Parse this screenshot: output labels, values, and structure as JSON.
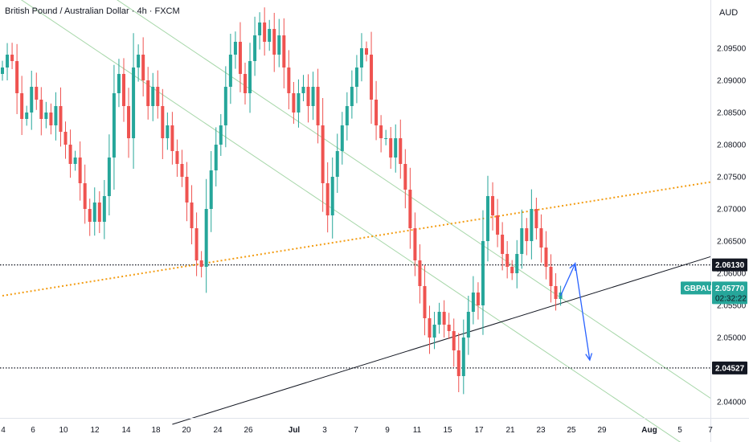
{
  "header": {
    "title": "British Pound / Australian Dollar · 4h · FXCM",
    "currency": "AUD"
  },
  "colors": {
    "up": "#26a69a",
    "down": "#ef5350",
    "channel": "#a5d6a7",
    "orange": "#f39c12",
    "trend": "#131722",
    "arrow": "#2962ff",
    "tag_bg": "#131722",
    "symbol_bg": "#26a69a"
  },
  "chart_data": {
    "type": "candlestick",
    "title": "British Pound / Australian Dollar · 4h · FXCM",
    "symbol": "GBPAUD",
    "ylim": [
      2.0375,
      2.1025
    ],
    "y_ticks": [
      {
        "value": 2.095,
        "label": "2.09500"
      },
      {
        "value": 2.09,
        "label": "2.09000"
      },
      {
        "value": 2.085,
        "label": "2.08500"
      },
      {
        "value": 2.08,
        "label": "2.08000"
      },
      {
        "value": 2.075,
        "label": "2.07500"
      },
      {
        "value": 2.07,
        "label": "2.07000"
      },
      {
        "value": 2.065,
        "label": "2.06500"
      },
      {
        "value": 2.06,
        "label": "2.06000"
      },
      {
        "value": 2.055,
        "label": "2.05500"
      },
      {
        "value": 2.05,
        "label": "2.05000"
      },
      {
        "value": 2.04,
        "label": "2.04000"
      }
    ],
    "x_ticks": [
      "4",
      "6",
      "10",
      "12",
      "14",
      "18",
      "20",
      "24",
      "26",
      "Jul",
      "3",
      "7",
      "9",
      "11",
      "15",
      "17",
      "21",
      "23",
      "25",
      "29",
      "Aug",
      "5",
      "7"
    ],
    "close": [
      2.092,
      2.094,
      2.093,
      2.088,
      2.084,
      2.085,
      2.089,
      2.087,
      2.084,
      2.085,
      2.083,
      2.086,
      2.082,
      2.08,
      2.077,
      2.078,
      2.074,
      2.07,
      2.068,
      2.071,
      2.068,
      2.072,
      2.078,
      2.088,
      2.091,
      2.086,
      2.081,
      2.092,
      2.094,
      2.09,
      2.086,
      2.089,
      2.086,
      2.081,
      2.083,
      2.079,
      2.077,
      2.075,
      2.071,
      2.067,
      2.062,
      2.061,
      2.07,
      2.076,
      2.08,
      2.083,
      2.089,
      2.094,
      2.096,
      2.091,
      2.088,
      2.093,
      2.097,
      2.099,
      2.096,
      2.098,
      2.094,
      2.097,
      2.092,
      2.088,
      2.085,
      2.088,
      2.089,
      2.086,
      2.089,
      2.083,
      2.074,
      2.069,
      2.075,
      2.079,
      2.083,
      2.086,
      2.089,
      2.092,
      2.095,
      2.094,
      2.087,
      2.083,
      2.081,
      2.081,
      2.078,
      2.081,
      2.077,
      2.073,
      2.067,
      2.062,
      2.058,
      2.053,
      2.05,
      2.052,
      2.054,
      2.052,
      2.051,
      2.048,
      2.044,
      2.05,
      2.054,
      2.057,
      2.055,
      2.065,
      2.072,
      2.069,
      2.066,
      2.063,
      2.061,
      2.06,
      2.063,
      2.067,
      2.065,
      2.07,
      2.067,
      2.064,
      2.061,
      2.058,
      2.056,
      2.057
    ],
    "last_price": {
      "value": 2.0577,
      "label": "2.05770",
      "countdown": "02:32:22"
    },
    "levels": [
      {
        "value": 2.0613,
        "label": "2.06130"
      },
      {
        "value": 2.04527,
        "label": "2.04527"
      }
    ],
    "lines": {
      "orange_dotted": {
        "from": [
          0,
          2.0565
        ],
        "to": [
          146,
          2.0742
        ]
      },
      "support": {
        "from": [
          35,
          2.0365
        ],
        "to": [
          146,
          2.0626
        ]
      },
      "channel_upper": {
        "from": [
          0,
          2.1145
        ],
        "to": [
          146,
          2.0405
        ]
      },
      "channel_lower": {
        "from": [
          0,
          2.1045
        ],
        "to": [
          146,
          2.0305
        ]
      }
    },
    "forecast_path": [
      [
        115,
        2.0565
      ],
      [
        118,
        2.0615
      ],
      [
        121,
        2.0465
      ]
    ],
    "grid": false,
    "legend": "none"
  }
}
